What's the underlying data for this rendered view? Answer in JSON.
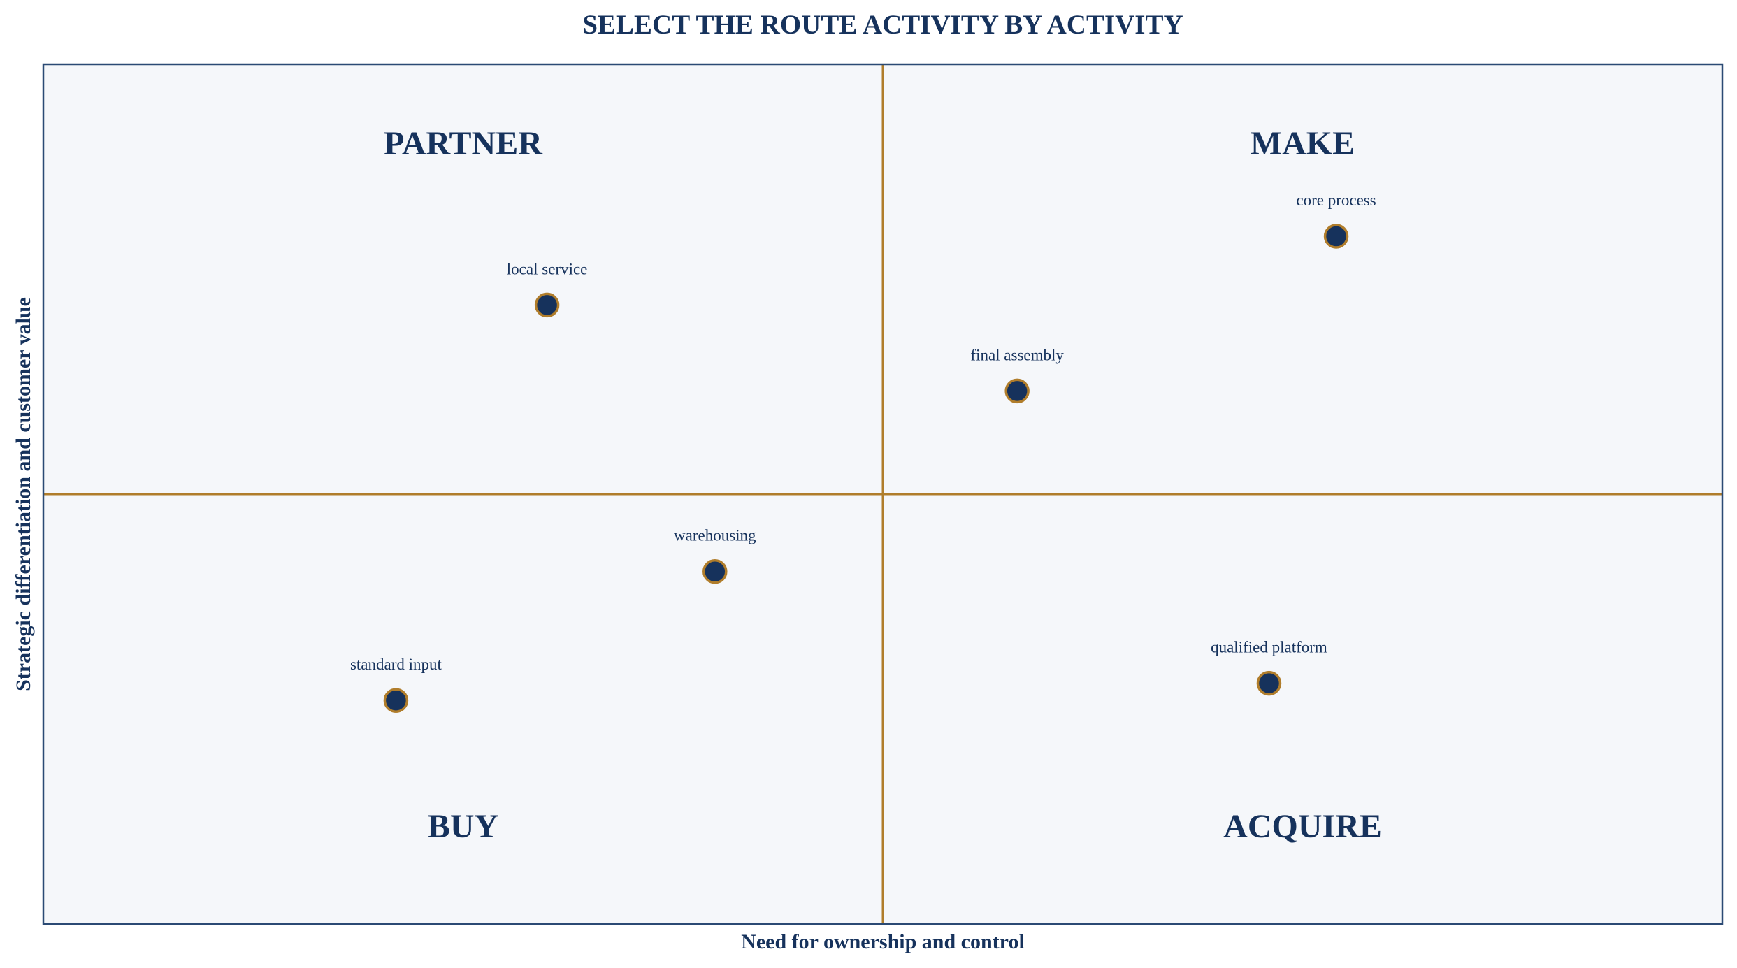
{
  "chart_data": {
    "type": "scatter",
    "title": "SELECT THE ROUTE ACTIVITY BY ACTIVITY",
    "xlabel": "Need for ownership and control",
    "ylabel": "Strategic differentiation and customer value",
    "xlim": [
      0,
      10
    ],
    "ylim": [
      0,
      10
    ],
    "grid": false,
    "quadrants": [
      {
        "key": "top-left",
        "label": "PARTNER"
      },
      {
        "key": "top-right",
        "label": "MAKE"
      },
      {
        "key": "bottom-left",
        "label": "BUY"
      },
      {
        "key": "bottom-right",
        "label": "ACQUIRE"
      }
    ],
    "points": [
      {
        "label": "core process",
        "x": 7.7,
        "y": 8.0
      },
      {
        "label": "local service",
        "x": 3.0,
        "y": 7.2
      },
      {
        "label": "final assembly",
        "x": 5.8,
        "y": 6.2
      },
      {
        "label": "warehousing",
        "x": 4.0,
        "y": 4.1
      },
      {
        "label": "qualified platform",
        "x": 7.3,
        "y": 2.8
      },
      {
        "label": "standard input",
        "x": 2.1,
        "y": 2.6
      }
    ]
  },
  "colors": {
    "navy": "#16325c",
    "gold": "#b07d2b",
    "plot_background": "#f5f7fa",
    "frame": "#2b4a74"
  }
}
